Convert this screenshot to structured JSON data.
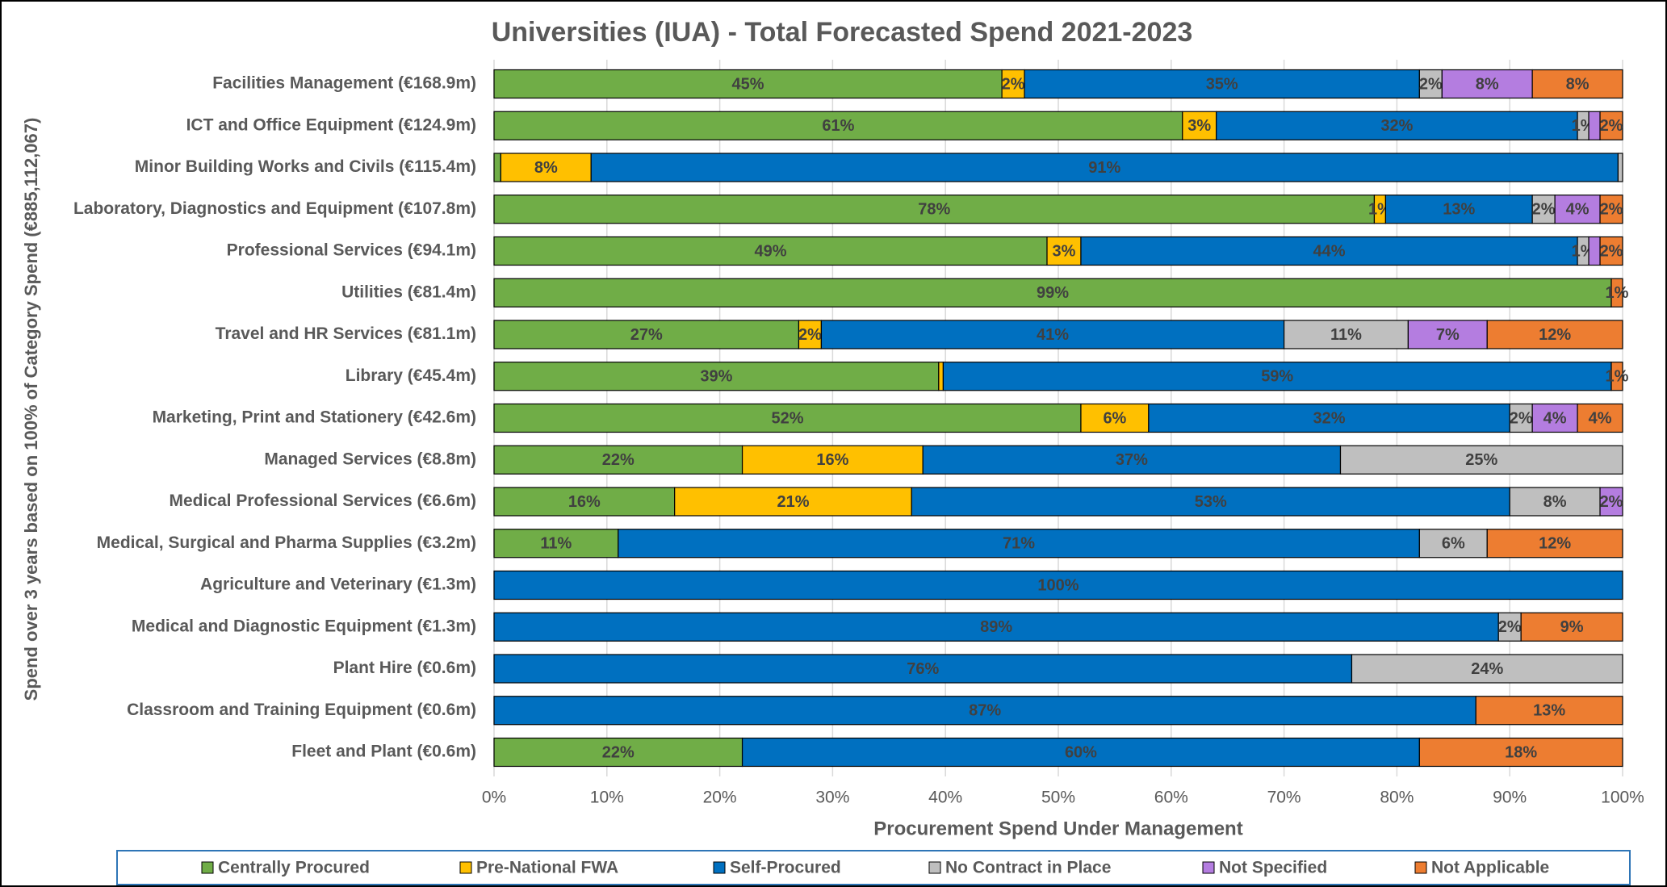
{
  "chart_data": {
    "type": "stacked_barh",
    "title": "Universities (IUA) - Total Forecasted Spend 2021-2023",
    "x_label": "Procurement Spend Under Management",
    "y_label": "Spend over 3 years based on 100% of Category Spend (€885,112,067)",
    "categories": [
      "Facilities Management (€168.9m)",
      "ICT and Office Equipment (€124.9m)",
      "Minor Building Works and Civils (€115.4m)",
      "Laboratory, Diagnostics and Equipment (€107.8m)",
      "Professional Services (€94.1m)",
      "Utilities (€81.4m)",
      "Travel and HR Services (€81.1m)",
      "Library (€45.4m)",
      "Marketing, Print and Stationery (€42.6m)",
      "Managed Services (€8.8m)",
      "Medical Professional Services (€6.6m)",
      "Medical, Surgical and Pharma Supplies (€3.2m)",
      "Agriculture and Veterinary (€1.3m)",
      "Medical and Diagnostic Equipment (€1.3m)",
      "Plant Hire (€0.6m)",
      "Classroom and Training Equipment (€0.6m)",
      "Fleet and Plant (€0.6m)"
    ],
    "series": [
      {
        "name": "Centrally Procured",
        "color": "#70ad47",
        "values": [
          45,
          61,
          0.6,
          78,
          49,
          99,
          27,
          39.4,
          52,
          22,
          16,
          11,
          null,
          null,
          null,
          null,
          22
        ],
        "value_labels": [
          "45%",
          "61%",
          null,
          "78%",
          "49%",
          "99%",
          "27%",
          "39%",
          "52%",
          "22%",
          "16%",
          "11%",
          null,
          null,
          null,
          null,
          "22%"
        ]
      },
      {
        "name": "Pre-National FWA",
        "color": "#ffc000",
        "values": [
          2,
          3,
          8,
          1,
          3,
          null,
          2,
          0.4,
          6,
          16,
          21,
          null,
          null,
          null,
          null,
          null,
          null
        ],
        "value_labels": [
          "2%",
          "3%",
          "8%",
          "1%",
          "3%",
          null,
          "2%",
          null,
          "6%",
          "16%",
          "21%",
          null,
          null,
          null,
          null,
          null,
          null
        ]
      },
      {
        "name": "Self-Procured",
        "color": "#0070c0",
        "values": [
          35,
          32,
          91,
          13,
          44,
          null,
          41,
          59.2,
          32,
          37,
          53,
          71,
          100,
          89,
          76,
          87,
          60
        ],
        "value_labels": [
          "35%",
          "32%",
          "91%",
          "13%",
          "44%",
          null,
          "41%",
          "59%",
          "32%",
          "37%",
          "53%",
          "71%",
          "100%",
          "89%",
          "76%",
          "87%",
          "60%"
        ]
      },
      {
        "name": "No Contract in Place",
        "color": "#bfbfbf",
        "values": [
          2,
          1,
          0.4,
          2,
          1,
          null,
          11,
          null,
          2,
          25,
          8,
          6,
          null,
          2,
          24,
          null,
          null
        ],
        "value_labels": [
          "2%",
          "1%",
          null,
          "2%",
          "1%",
          null,
          "11%",
          null,
          "2%",
          "25%",
          "8%",
          "6%",
          null,
          "2%",
          "24%",
          null,
          null
        ]
      },
      {
        "name": "Not Specified",
        "color": "#b47de0",
        "values": [
          8,
          1,
          null,
          4,
          1,
          null,
          7,
          null,
          4,
          null,
          2,
          null,
          null,
          null,
          null,
          null,
          null
        ],
        "value_labels": [
          "8%",
          null,
          null,
          "4%",
          null,
          null,
          "7%",
          null,
          "4%",
          null,
          "2%",
          null,
          null,
          null,
          null,
          null,
          null
        ]
      },
      {
        "name": "Not Applicable",
        "color": "#ed7d31",
        "values": [
          8,
          2,
          null,
          2,
          2,
          1,
          12,
          1,
          4,
          null,
          null,
          12,
          null,
          9,
          null,
          13,
          18
        ],
        "value_labels": [
          "8%",
          "2%",
          null,
          "2%",
          "2%",
          "1%",
          "12%",
          "1%",
          "4%",
          null,
          null,
          "12%",
          null,
          "9%",
          null,
          "13%",
          "18%"
        ]
      }
    ],
    "xlim": [
      0,
      100
    ],
    "xticks": [
      {
        "value": 0,
        "label": "0%"
      },
      {
        "value": 10,
        "label": "10%"
      },
      {
        "value": 20,
        "label": "20%"
      },
      {
        "value": 30,
        "label": "30%"
      },
      {
        "value": 40,
        "label": "40%"
      },
      {
        "value": 50,
        "label": "50%"
      },
      {
        "value": 60,
        "label": "60%"
      },
      {
        "value": 70,
        "label": "70%"
      },
      {
        "value": 80,
        "label": "80%"
      },
      {
        "value": 90,
        "label": "90%"
      },
      {
        "value": 100,
        "label": "100%"
      }
    ],
    "grid": true,
    "legend": "bottom"
  }
}
